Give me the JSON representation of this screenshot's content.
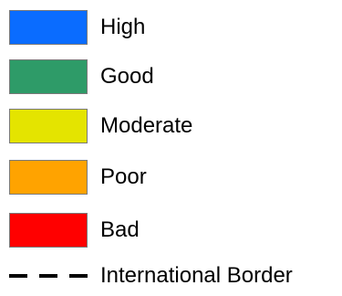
{
  "legend": {
    "items": [
      {
        "label": "High",
        "color": "#0a6cff"
      },
      {
        "label": "Good",
        "color": "#2e9b68"
      },
      {
        "label": "Moderate",
        "color": "#e4e400"
      },
      {
        "label": "Poor",
        "color": "#ffa300"
      },
      {
        "label": "Bad",
        "color": "#ff0000"
      }
    ],
    "border": {
      "label": "International Border",
      "line_style": "dashed",
      "color": "#000000"
    }
  }
}
